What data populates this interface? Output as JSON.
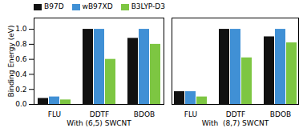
{
  "chart_data": [
    {
      "type": "bar",
      "categories": [
        "FLU",
        "DDTF",
        "BDOB"
      ],
      "series": [
        {
          "name": "B97D",
          "color": "#111111",
          "values": [
            0.08,
            1.0,
            0.88
          ]
        },
        {
          "name": "wB97XD",
          "color": "#4090d5",
          "values": [
            0.1,
            1.0,
            1.0
          ]
        },
        {
          "name": "B3LYP-D3",
          "color": "#7dc642",
          "values": [
            0.06,
            0.6,
            0.8
          ]
        }
      ],
      "xlabel": "With (6,5) SWCNT",
      "ylabel": "Binding Energy (eV)",
      "ylim": [
        0,
        1.15
      ],
      "yticks": [
        {
          "value": 0,
          "label": "0.0"
        },
        {
          "value": 0.2,
          "label": "0.2"
        },
        {
          "value": 0.4,
          "label": "0.4"
        },
        {
          "value": 0.6,
          "label": "0.6"
        },
        {
          "value": 0.8,
          "label": "0.8"
        },
        {
          "value": 1,
          "label": "1.0"
        }
      ],
      "legend": "upper left"
    },
    {
      "type": "bar",
      "categories": [
        "FLU",
        "DDTF",
        "BDOB"
      ],
      "series": [
        {
          "name": "B97D",
          "color": "#111111",
          "values": [
            0.17,
            1.0,
            0.9
          ]
        },
        {
          "name": "wB97XD",
          "color": "#4090d5",
          "values": [
            0.17,
            1.0,
            1.0
          ]
        },
        {
          "name": "B3LYP-D3",
          "color": "#7dc642",
          "values": [
            0.1,
            0.62,
            0.82
          ]
        }
      ],
      "xlabel": "With  (8,7) SWCNT",
      "ylim": [
        0,
        1.15
      ],
      "tick_labels": "x"
    }
  ]
}
